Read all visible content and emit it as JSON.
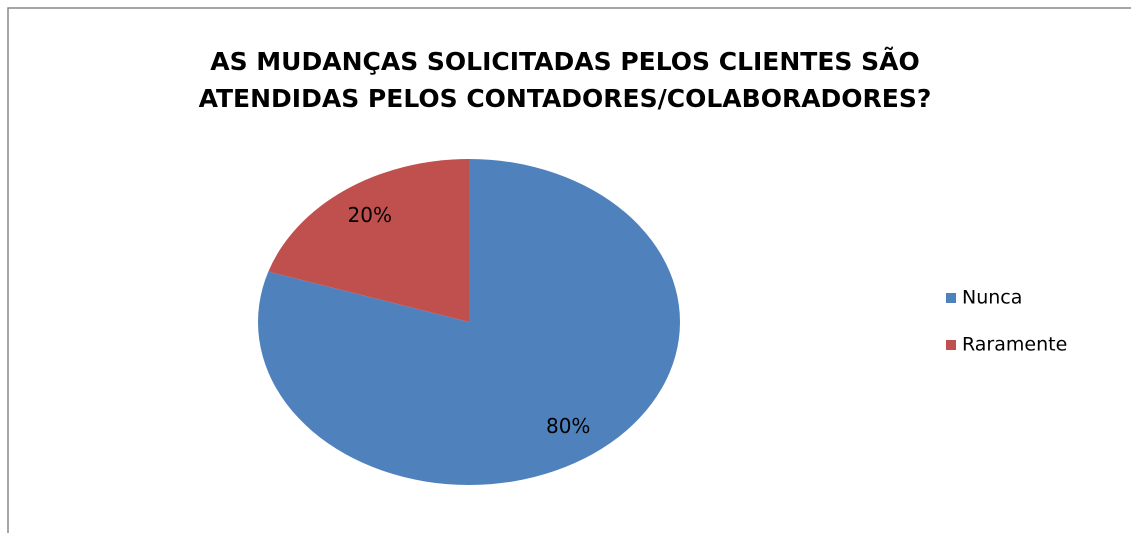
{
  "chart_data": {
    "type": "pie",
    "title": [
      "AS MUDANÇAS SOLICITADAS PELOS CLIENTES SÃO",
      "ATENDIDAS PELOS CONTADORES/COLABORADORES?"
    ],
    "categories": [
      "Nunca",
      "Raramente"
    ],
    "values": [
      80,
      20
    ],
    "value_labels": [
      "80%",
      "20%"
    ],
    "colors": [
      "#4f81bd",
      "#c0504d"
    ],
    "legend": "right"
  }
}
